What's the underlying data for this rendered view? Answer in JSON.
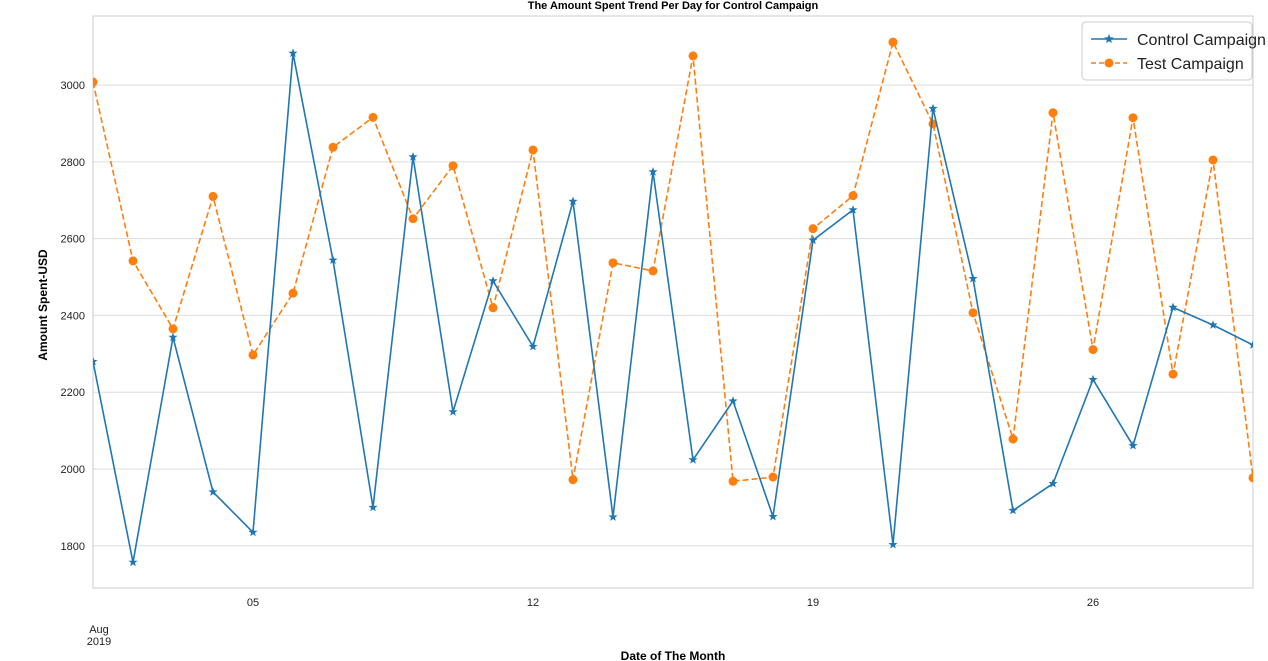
{
  "chart_data": {
    "type": "line",
    "title": "The Amount Spent Trend Per Day for Control Campaign",
    "xlabel": "Date of The Month",
    "ylabel": "Amount Spent-USD",
    "x": [
      "2019-08-01",
      "2019-08-02",
      "2019-08-03",
      "2019-08-04",
      "2019-08-05",
      "2019-08-06",
      "2019-08-07",
      "2019-08-08",
      "2019-08-09",
      "2019-08-10",
      "2019-08-11",
      "2019-08-12",
      "2019-08-13",
      "2019-08-14",
      "2019-08-15",
      "2019-08-16",
      "2019-08-17",
      "2019-08-18",
      "2019-08-19",
      "2019-08-20",
      "2019-08-21",
      "2019-08-22",
      "2019-08-23",
      "2019-08-24",
      "2019-08-25",
      "2019-08-26",
      "2019-08-27",
      "2019-08-28",
      "2019-08-29",
      "2019-08-30"
    ],
    "xlim": [
      "2019-08-01",
      "2019-08-30"
    ],
    "x_ticks": [
      {
        "date": "2019-08-05",
        "label": "05"
      },
      {
        "date": "2019-08-12",
        "label": "12"
      },
      {
        "date": "2019-08-19",
        "label": "19"
      },
      {
        "date": "2019-08-26",
        "label": "26"
      }
    ],
    "x_origin_label": [
      "Aug",
      "2019"
    ],
    "ylim": [
      1690,
      3180
    ],
    "y_ticks": [
      1800,
      2000,
      2200,
      2400,
      2600,
      2800,
      3000
    ],
    "grid": true,
    "legend": "top-right",
    "series": [
      {
        "name": "Control Campaign",
        "color": "#1f77b4",
        "marker": "star",
        "linestyle": "solid",
        "values": [
          2280,
          1757,
          2343,
          1940,
          1835,
          3083,
          2544,
          1900,
          2813,
          2149,
          2490,
          2319,
          2697,
          1875,
          2774,
          2024,
          2177,
          1876,
          2596,
          2675,
          1803,
          2939,
          2496,
          1892,
          1962,
          2233,
          2061,
          2421,
          2375,
          2323
        ]
      },
      {
        "name": "Test Campaign",
        "color": "#ff7f0e",
        "marker": "circle",
        "linestyle": "dashed",
        "values": [
          3008,
          2542,
          2365,
          2710,
          2297,
          2458,
          2838,
          2916,
          2652,
          2790,
          2420,
          2831,
          1972,
          2537,
          2516,
          3076,
          1968,
          1979,
          2626,
          2712,
          3112,
          2899,
          2407,
          2078,
          2928,
          2311,
          2915,
          2247,
          2805,
          1977
        ]
      }
    ]
  }
}
